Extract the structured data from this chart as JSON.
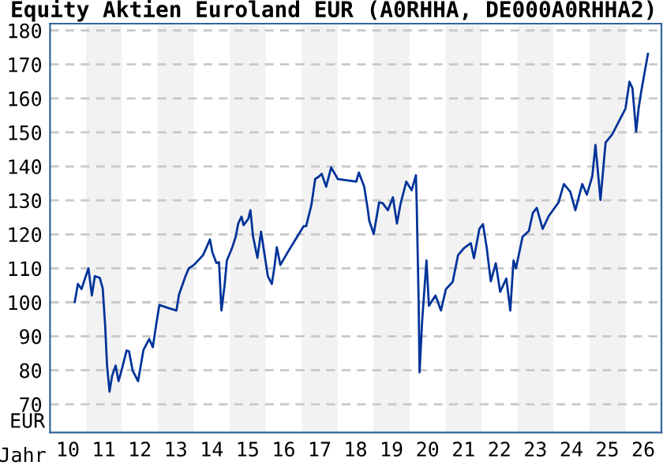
{
  "chart_data": {
    "type": "line",
    "title": "Equity Aktien Euroland EUR (A0RHHA, DE000A0RHHA2)",
    "xlabel": "Jahr",
    "ylabel": "EUR",
    "series": [
      {
        "color": "#003399",
        "x": [
          "2010-09-09",
          "2010-10-11",
          "2010-11-17",
          "2010-12-13",
          "2011-01-26",
          "2011-03-02",
          "2011-04-01",
          "2011-05-21",
          "2011-06-20",
          "2011-07-15",
          "2011-08-03",
          "2011-08-28",
          "2011-09-23",
          "2011-10-29",
          "2011-11-28",
          "2012-01-04",
          "2012-02-17",
          "2012-03-13",
          "2012-04-19",
          "2012-06-13",
          "2012-08-07",
          "2012-10-04",
          "2012-11-10",
          "2012-12-16",
          "2013-01-15",
          "2013-04-08",
          "2013-07-08",
          "2013-08-03",
          "2013-10-08",
          "2013-11-10",
          "2014-01-01",
          "2014-04-04",
          "2014-05-10",
          "2014-06-13",
          "2014-07-08",
          "2014-08-17",
          "2014-09-13",
          "2014-10-08",
          "2014-11-07",
          "2014-12-02",
          "2015-01-26",
          "2015-03-02",
          "2015-03-27",
          "2015-04-29",
          "2015-05-21",
          "2015-07-08",
          "2015-07-29",
          "2015-08-25",
          "2015-10-08",
          "2015-11-14",
          "2015-12-09",
          "2016-01-22",
          "2016-03-02",
          "2016-03-27",
          "2016-04-22",
          "2016-05-28",
          "2016-08-10",
          "2016-10-29",
          "2017-01-19",
          "2017-02-14",
          "2017-04-08",
          "2017-05-17",
          "2017-06-23",
          "2017-07-22",
          "2017-09-05",
          "2017-10-26",
          "2018-01-01",
          "2018-07-08",
          "2018-08-03",
          "2018-09-27",
          "2018-11-03",
          "2018-11-17",
          "2019-01-01",
          "2019-02-25",
          "2019-04-01",
          "2019-05-25",
          "2019-07-15",
          "2019-08-25",
          "2019-10-01",
          "2019-11-28",
          "2020-01-22",
          "2020-03-05",
          "2020-03-13",
          "2020-04-01",
          "2020-04-11",
          "2020-05-07",
          "2020-06-20",
          "2020-07-15",
          "2020-09-20",
          "2020-11-14",
          "2021-01-04",
          "2021-03-13",
          "2021-05-07",
          "2021-07-08",
          "2021-09-13",
          "2021-10-15",
          "2021-12-09",
          "2022-01-15",
          "2022-02-21",
          "2022-04-04",
          "2022-05-25",
          "2022-07-08",
          "2022-09-09",
          "2022-10-19",
          "2022-11-21",
          "2022-12-16",
          "2023-02-21",
          "2023-04-26",
          "2023-06-05",
          "2023-07-15",
          "2023-09-13",
          "2023-11-14",
          "2024-02-21",
          "2024-04-15",
          "2024-06-20",
          "2024-08-10",
          "2024-10-19",
          "2024-12-05",
          "2025-01-29",
          "2025-03-02",
          "2025-04-22",
          "2025-06-13",
          "2025-08-21",
          "2025-11-10",
          "2026-01-01",
          "2026-02-10",
          "2026-03-13",
          "2026-04-19",
          "2026-05-14",
          "2026-06-13",
          "2026-08-17"
        ],
        "values": [
          100.1,
          105.4,
          103.9,
          106.2,
          110.0,
          102.0,
          107.7,
          107.2,
          104.1,
          93.0,
          81.4,
          73.7,
          78.3,
          81.4,
          76.8,
          80.7,
          85.8,
          85.6,
          79.9,
          76.8,
          86.0,
          89.2,
          86.8,
          93.8,
          99.2,
          98.4,
          97.6,
          102.3,
          107.7,
          110.0,
          111.0,
          113.9,
          116.2,
          118.5,
          114.7,
          111.6,
          111.8,
          97.6,
          104.6,
          112.3,
          116.2,
          119.3,
          123.2,
          125.2,
          122.7,
          124.6,
          127.1,
          119.3,
          113.1,
          120.8,
          116.0,
          107.7,
          105.4,
          110.0,
          116.2,
          111.0,
          114.7,
          118.5,
          122.4,
          122.4,
          128.6,
          136.3,
          137.0,
          137.8,
          134.0,
          139.7,
          136.3,
          135.5,
          138.2,
          134.0,
          127.1,
          124.0,
          120.1,
          129.4,
          129.2,
          127.1,
          130.9,
          123.2,
          129.0,
          135.5,
          133.0,
          137.4,
          128.6,
          100.8,
          79.4,
          94.5,
          112.3,
          99.0,
          102.0,
          97.6,
          103.9,
          106.0,
          113.9,
          116.0,
          117.4,
          113.0,
          121.6,
          123.0,
          116.2,
          106.2,
          111.5,
          103.1,
          107.0,
          97.6,
          112.3,
          110.0,
          119.3,
          121.0,
          126.3,
          127.8,
          121.6,
          125.4,
          129.4,
          134.8,
          132.5,
          127.1,
          134.8,
          131.7,
          137.1,
          146.3,
          130.1,
          147.0,
          149.5,
          154.1,
          157.0,
          164.9,
          163.0,
          150.2,
          157.0,
          162.6,
          173.1
        ]
      }
    ],
    "xlim": [
      "2010-01-01",
      "2027-01-01"
    ],
    "ylim": [
      61.7,
      182
    ],
    "xticks": [
      {
        "value": "2010-07-01",
        "label": "10"
      },
      {
        "value": "2011-07-01",
        "label": "11"
      },
      {
        "value": "2012-07-01",
        "label": "12"
      },
      {
        "value": "2013-07-01",
        "label": "13"
      },
      {
        "value": "2014-07-01",
        "label": "14"
      },
      {
        "value": "2015-07-01",
        "label": "15"
      },
      {
        "value": "2016-07-01",
        "label": "16"
      },
      {
        "value": "2017-07-01",
        "label": "17"
      },
      {
        "value": "2018-07-01",
        "label": "18"
      },
      {
        "value": "2019-07-01",
        "label": "19"
      },
      {
        "value": "2020-07-01",
        "label": "20"
      },
      {
        "value": "2021-07-01",
        "label": "21"
      },
      {
        "value": "2022-07-01",
        "label": "22"
      },
      {
        "value": "2023-07-01",
        "label": "23"
      },
      {
        "value": "2024-07-01",
        "label": "24"
      },
      {
        "value": "2025-07-01",
        "label": "25"
      },
      {
        "value": "2026-07-01",
        "label": "26"
      }
    ],
    "yticks": [
      70,
      80,
      90,
      100,
      110,
      120,
      130,
      140,
      150,
      160,
      170,
      180
    ],
    "bands": [
      {
        "axis": "x",
        "from": "2011-01-01",
        "to": "2012-01-01",
        "color": "#f2f2f2"
      },
      {
        "axis": "x",
        "from": "2013-01-01",
        "to": "2014-01-01",
        "color": "#f2f2f2"
      },
      {
        "axis": "x",
        "from": "2015-01-01",
        "to": "2016-01-01",
        "color": "#f2f2f2"
      },
      {
        "axis": "x",
        "from": "2017-01-01",
        "to": "2018-01-01",
        "color": "#f2f2f2"
      },
      {
        "axis": "x",
        "from": "2019-01-01",
        "to": "2020-01-01",
        "color": "#f2f2f2"
      },
      {
        "axis": "x",
        "from": "2021-01-01",
        "to": "2022-01-01",
        "color": "#f2f2f2"
      },
      {
        "axis": "x",
        "from": "2023-01-01",
        "to": "2024-01-01",
        "color": "#f2f2f2"
      },
      {
        "axis": "x",
        "from": "2025-01-01",
        "to": "2026-01-01",
        "color": "#f2f2f2"
      }
    ],
    "grid": "y",
    "legend": false,
    "marker": "none",
    "line_style": "solid"
  }
}
